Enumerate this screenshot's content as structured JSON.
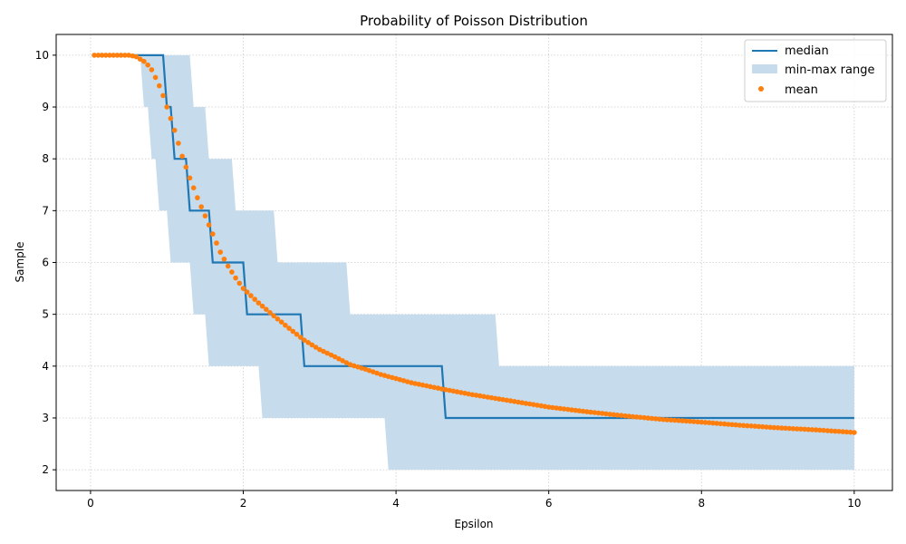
{
  "chart_data": {
    "type": "line",
    "title": "Probability of Poisson Distribution",
    "xlabel": "Epsilon",
    "ylabel": "Sample",
    "xlim": [
      -0.45,
      10.5
    ],
    "ylim": [
      1.6,
      10.4
    ],
    "xticks": [
      0,
      2,
      4,
      6,
      8,
      10
    ],
    "yticks": [
      2,
      3,
      4,
      5,
      6,
      7,
      8,
      9,
      10
    ],
    "grid": true,
    "legend": "top-right",
    "colors": {
      "median": "#1f77b4",
      "range": "#c6dbec",
      "mean": "#ff7f0e",
      "grid": "#cccccc"
    },
    "series": [
      {
        "name": "median",
        "kind": "step-line",
        "steps": [
          {
            "x_start": 0.05,
            "x_end": 0.95,
            "y": 10
          },
          {
            "x_start": 1.0,
            "x_end": 1.05,
            "y": 9
          },
          {
            "x_start": 1.1,
            "x_end": 1.25,
            "y": 8
          },
          {
            "x_start": 1.3,
            "x_end": 1.55,
            "y": 7
          },
          {
            "x_start": 1.6,
            "x_end": 2.0,
            "y": 6
          },
          {
            "x_start": 2.05,
            "x_end": 2.75,
            "y": 5
          },
          {
            "x_start": 2.8,
            "x_end": 4.6,
            "y": 4
          },
          {
            "x_start": 4.65,
            "x_end": 10.0,
            "y": 3
          }
        ]
      },
      {
        "name": "min-max range",
        "kind": "band",
        "segments": [
          {
            "x_start": 0.05,
            "x_end": 0.65,
            "min": 10,
            "max": 10
          },
          {
            "x_start": 0.7,
            "x_end": 0.75,
            "min": 9,
            "max": 10
          },
          {
            "x_start": 0.8,
            "x_end": 0.85,
            "min": 8,
            "max": 10
          },
          {
            "x_start": 0.9,
            "x_end": 1.0,
            "min": 7,
            "max": 10
          },
          {
            "x_start": 1.05,
            "x_end": 1.3,
            "min": 6,
            "max": 10
          },
          {
            "x_start": 1.35,
            "x_end": 1.5,
            "min": 5,
            "max": 9
          },
          {
            "x_start": 1.55,
            "x_end": 1.85,
            "min": 4,
            "max": 8
          },
          {
            "x_start": 1.9,
            "x_end": 2.2,
            "min": 4,
            "max": 7
          },
          {
            "x_start": 2.25,
            "x_end": 2.4,
            "min": 3,
            "max": 7
          },
          {
            "x_start": 2.45,
            "x_end": 3.35,
            "min": 3,
            "max": 6
          },
          {
            "x_start": 3.4,
            "x_end": 3.85,
            "min": 3,
            "max": 5
          },
          {
            "x_start": 3.9,
            "x_end": 5.3,
            "min": 2,
            "max": 5
          },
          {
            "x_start": 5.35,
            "x_end": 10.0,
            "min": 2,
            "max": 4
          }
        ]
      },
      {
        "name": "mean",
        "kind": "scatter",
        "x_start": 0.05,
        "x_end": 10.0,
        "x_step": 0.05,
        "curve": [
          [
            0.05,
            10.0
          ],
          [
            0.5,
            10.0
          ],
          [
            0.6,
            9.97
          ],
          [
            0.7,
            9.88
          ],
          [
            0.75,
            9.81
          ],
          [
            0.8,
            9.72
          ],
          [
            0.85,
            9.57
          ],
          [
            0.9,
            9.41
          ],
          [
            0.95,
            9.22
          ],
          [
            1.0,
            9.0
          ],
          [
            1.05,
            8.78
          ],
          [
            1.1,
            8.55
          ],
          [
            1.2,
            8.05
          ],
          [
            1.3,
            7.63
          ],
          [
            1.4,
            7.25
          ],
          [
            1.5,
            6.9
          ],
          [
            1.6,
            6.55
          ],
          [
            1.7,
            6.2
          ],
          [
            1.8,
            5.93
          ],
          [
            1.9,
            5.7
          ],
          [
            2.0,
            5.5
          ],
          [
            2.2,
            5.22
          ],
          [
            2.4,
            4.97
          ],
          [
            2.6,
            4.73
          ],
          [
            2.8,
            4.5
          ],
          [
            3.0,
            4.32
          ],
          [
            3.2,
            4.18
          ],
          [
            3.4,
            4.03
          ],
          [
            3.6,
            3.94
          ],
          [
            3.8,
            3.84
          ],
          [
            4.0,
            3.76
          ],
          [
            4.2,
            3.68
          ],
          [
            4.4,
            3.62
          ],
          [
            4.6,
            3.56
          ],
          [
            5.0,
            3.45
          ],
          [
            5.5,
            3.33
          ],
          [
            6.0,
            3.21
          ],
          [
            6.5,
            3.12
          ],
          [
            7.0,
            3.04
          ],
          [
            7.5,
            2.97
          ],
          [
            8.0,
            2.92
          ],
          [
            8.5,
            2.86
          ],
          [
            9.0,
            2.81
          ],
          [
            9.5,
            2.77
          ],
          [
            10.0,
            2.72
          ]
        ]
      }
    ]
  }
}
